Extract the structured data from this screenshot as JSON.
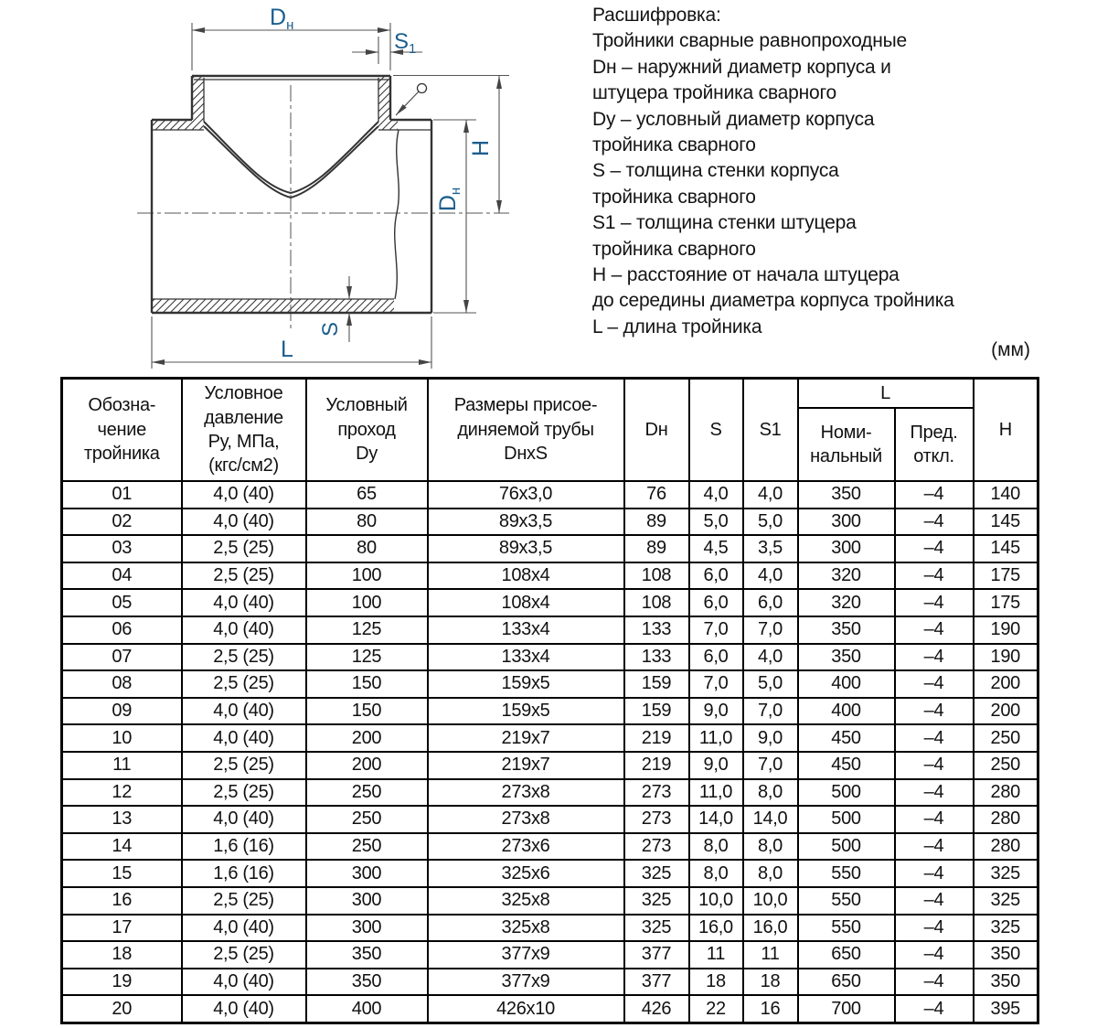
{
  "colors": {
    "accent_blue": "#1b5e8f",
    "line_dark": "#333333",
    "line_thin": "#555555",
    "table_border": "#000000",
    "text": "#141414"
  },
  "legend": {
    "lines": [
      "Расшифровка:",
      "Тройники сварные равнопроходные",
      "Dн – наружний диаметр корпуса и",
      "штуцера тройника сварного",
      "Dy – условный диаметр корпуса",
      "тройника сварного",
      "S – толщина стенки корпуса",
      "тройника сварного",
      "S1 – толщина стенки штуцера",
      "тройника сварного",
      "H – расстояние от начала штуцера",
      "до середины диаметра корпуса тройника",
      "L – длина тройника"
    ]
  },
  "units_note": "(мм)",
  "drawing": {
    "labels": {
      "dn_top_main": "D",
      "dn_top_sub": "н",
      "s1_main": "S",
      "s1_sub": "1",
      "h": "H",
      "dn_right_main": "D",
      "dn_right_sub": "н",
      "s": "S",
      "l": "L"
    }
  },
  "table": {
    "header": {
      "designation": "Обозна-\nчение\nтройника",
      "pressure": "Условное\nдавление\nРу, МПа,\n(кгс/см2)",
      "bore": "Условный\nпроход\nDy",
      "pipe_size": "Размеры присое-\nдиняемой трубы\nDнхS",
      "dn": "Dн",
      "s": "S",
      "s1": "S1",
      "l_group": {
        "label": "L",
        "nominal": "Номи-\nнальный",
        "deviation": "Пред.\nоткл."
      },
      "h": "H"
    },
    "rows": [
      [
        "01",
        "4,0 (40)",
        "65",
        "76x3,0",
        "76",
        "4,0",
        "4,0",
        "350",
        "–4",
        "140"
      ],
      [
        "02",
        "4,0 (40)",
        "80",
        "89x3,5",
        "89",
        "5,0",
        "5,0",
        "300",
        "–4",
        "145"
      ],
      [
        "03",
        "2,5 (25)",
        "80",
        "89x3,5",
        "89",
        "4,5",
        "3,5",
        "300",
        "–4",
        "145"
      ],
      [
        "04",
        "2,5 (25)",
        "100",
        "108x4",
        "108",
        "6,0",
        "4,0",
        "320",
        "–4",
        "175"
      ],
      [
        "05",
        "4,0 (40)",
        "100",
        "108x4",
        "108",
        "6,0",
        "6,0",
        "320",
        "–4",
        "175"
      ],
      [
        "06",
        "4,0 (40)",
        "125",
        "133x4",
        "133",
        "7,0",
        "7,0",
        "350",
        "–4",
        "190"
      ],
      [
        "07",
        "2,5 (25)",
        "125",
        "133x4",
        "133",
        "6,0",
        "4,0",
        "350",
        "–4",
        "190"
      ],
      [
        "08",
        "2,5 (25)",
        "150",
        "159x5",
        "159",
        "7,0",
        "5,0",
        "400",
        "–4",
        "200"
      ],
      [
        "09",
        "4,0 (40)",
        "150",
        "159x5",
        "159",
        "9,0",
        "7,0",
        "400",
        "–4",
        "200"
      ],
      [
        "10",
        "4,0 (40)",
        "200",
        "219x7",
        "219",
        "11,0",
        "9,0",
        "450",
        "–4",
        "250"
      ],
      [
        "11",
        "2,5 (25)",
        "200",
        "219x7",
        "219",
        "9,0",
        "7,0",
        "450",
        "–4",
        "250"
      ],
      [
        "12",
        "2,5 (25)",
        "250",
        "273x8",
        "273",
        "11,0",
        "8,0",
        "500",
        "–4",
        "280"
      ],
      [
        "13",
        "4,0 (40)",
        "250",
        "273x8",
        "273",
        "14,0",
        "14,0",
        "500",
        "–4",
        "280"
      ],
      [
        "14",
        "1,6 (16)",
        "250",
        "273x6",
        "273",
        "8,0",
        "8,0",
        "500",
        "–4",
        "280"
      ],
      [
        "15",
        "1,6 (16)",
        "300",
        "325x6",
        "325",
        "8,0",
        "8,0",
        "550",
        "–4",
        "325"
      ],
      [
        "16",
        "2,5 (25)",
        "300",
        "325x8",
        "325",
        "10,0",
        "10,0",
        "550",
        "–4",
        "325"
      ],
      [
        "17",
        "4,0 (40)",
        "300",
        "325x8",
        "325",
        "16,0",
        "16,0",
        "550",
        "–4",
        "325"
      ],
      [
        "18",
        "2,5 (25)",
        "350",
        "377x9",
        "377",
        "11",
        "11",
        "650",
        "–4",
        "350"
      ],
      [
        "19",
        "4,0 (40)",
        "350",
        "377x9",
        "377",
        "18",
        "18",
        "650",
        "–4",
        "350"
      ],
      [
        "20",
        "4,0 (40)",
        "400",
        "426x10",
        "426",
        "22",
        "16",
        "700",
        "–4",
        "395"
      ]
    ]
  }
}
